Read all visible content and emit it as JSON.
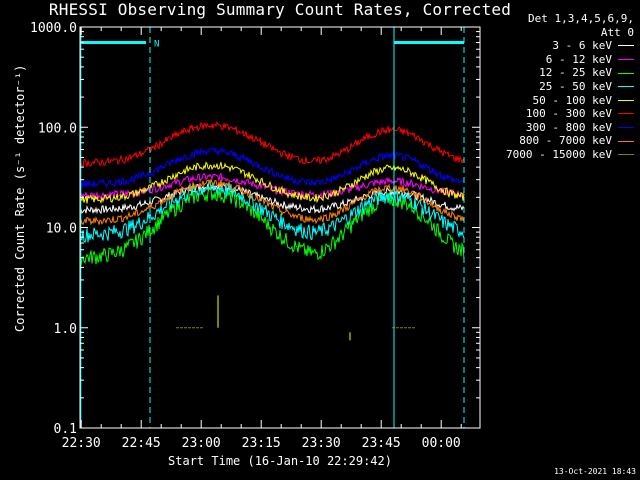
{
  "chart_data": {
    "type": "line",
    "title": "RHESSI Observing Summary Count Rates, Corrected",
    "ylabel": "Corrected Count Rate (s⁻¹ detector⁻¹)",
    "xlabel": "Start Time (16-Jan-10 22:29:42)",
    "y_scale": "log",
    "ylim": [
      0.1,
      1000
    ],
    "y_ticks": [
      "0.1",
      "1.0",
      "10.0",
      "100.0",
      "1000.0"
    ],
    "x_range_minutes": [
      0,
      100
    ],
    "x_ticks": [
      "22:30",
      "22:45",
      "23:00",
      "23:15",
      "23:30",
      "23:45",
      "00:00"
    ],
    "legend_header": "Det 1,3,4,5,6,9,\nAtt 0",
    "legend_placement": "top-right",
    "annotation": "N",
    "timestamp": "13-Oct-2021 18:43",
    "colors": {
      "background": "#000000",
      "axes": "#ffffff",
      "attenuator": "#00ffff"
    },
    "series": [
      {
        "name": "3 - 6 keV",
        "color": "#ffffff",
        "baseline": 15,
        "peak1": 26,
        "peak2": 23
      },
      {
        "name": "6 - 12 keV",
        "color": "#ff00ff",
        "baseline": 21,
        "peak1": 32,
        "peak2": 29
      },
      {
        "name": "12 - 25 keV",
        "color": "#00ff00",
        "baseline": 5,
        "peak1": 22,
        "peak2": 19
      },
      {
        "name": "25 - 50 keV",
        "color": "#00ffff",
        "baseline": 8.5,
        "peak1": 25,
        "peak2": 21
      },
      {
        "name": "50 - 100 keV",
        "color": "#ffff00",
        "baseline": 19,
        "peak1": 42,
        "peak2": 39
      },
      {
        "name": "100 - 300 keV",
        "color": "#ff0000",
        "baseline": 44,
        "peak1": 105,
        "peak2": 94
      },
      {
        "name": "300 - 800 keV",
        "color": "#0000ff",
        "baseline": 27,
        "peak1": 58,
        "peak2": 52
      },
      {
        "name": "800 - 7000 keV",
        "color": "#ff8000",
        "baseline": 11.5,
        "peak1": 28,
        "peak2": 25
      },
      {
        "name": "7000 - 15000 keV",
        "color": "#808000",
        "baseline": 1.0,
        "peak1": 1.0,
        "peak2": 1.0
      }
    ]
  }
}
